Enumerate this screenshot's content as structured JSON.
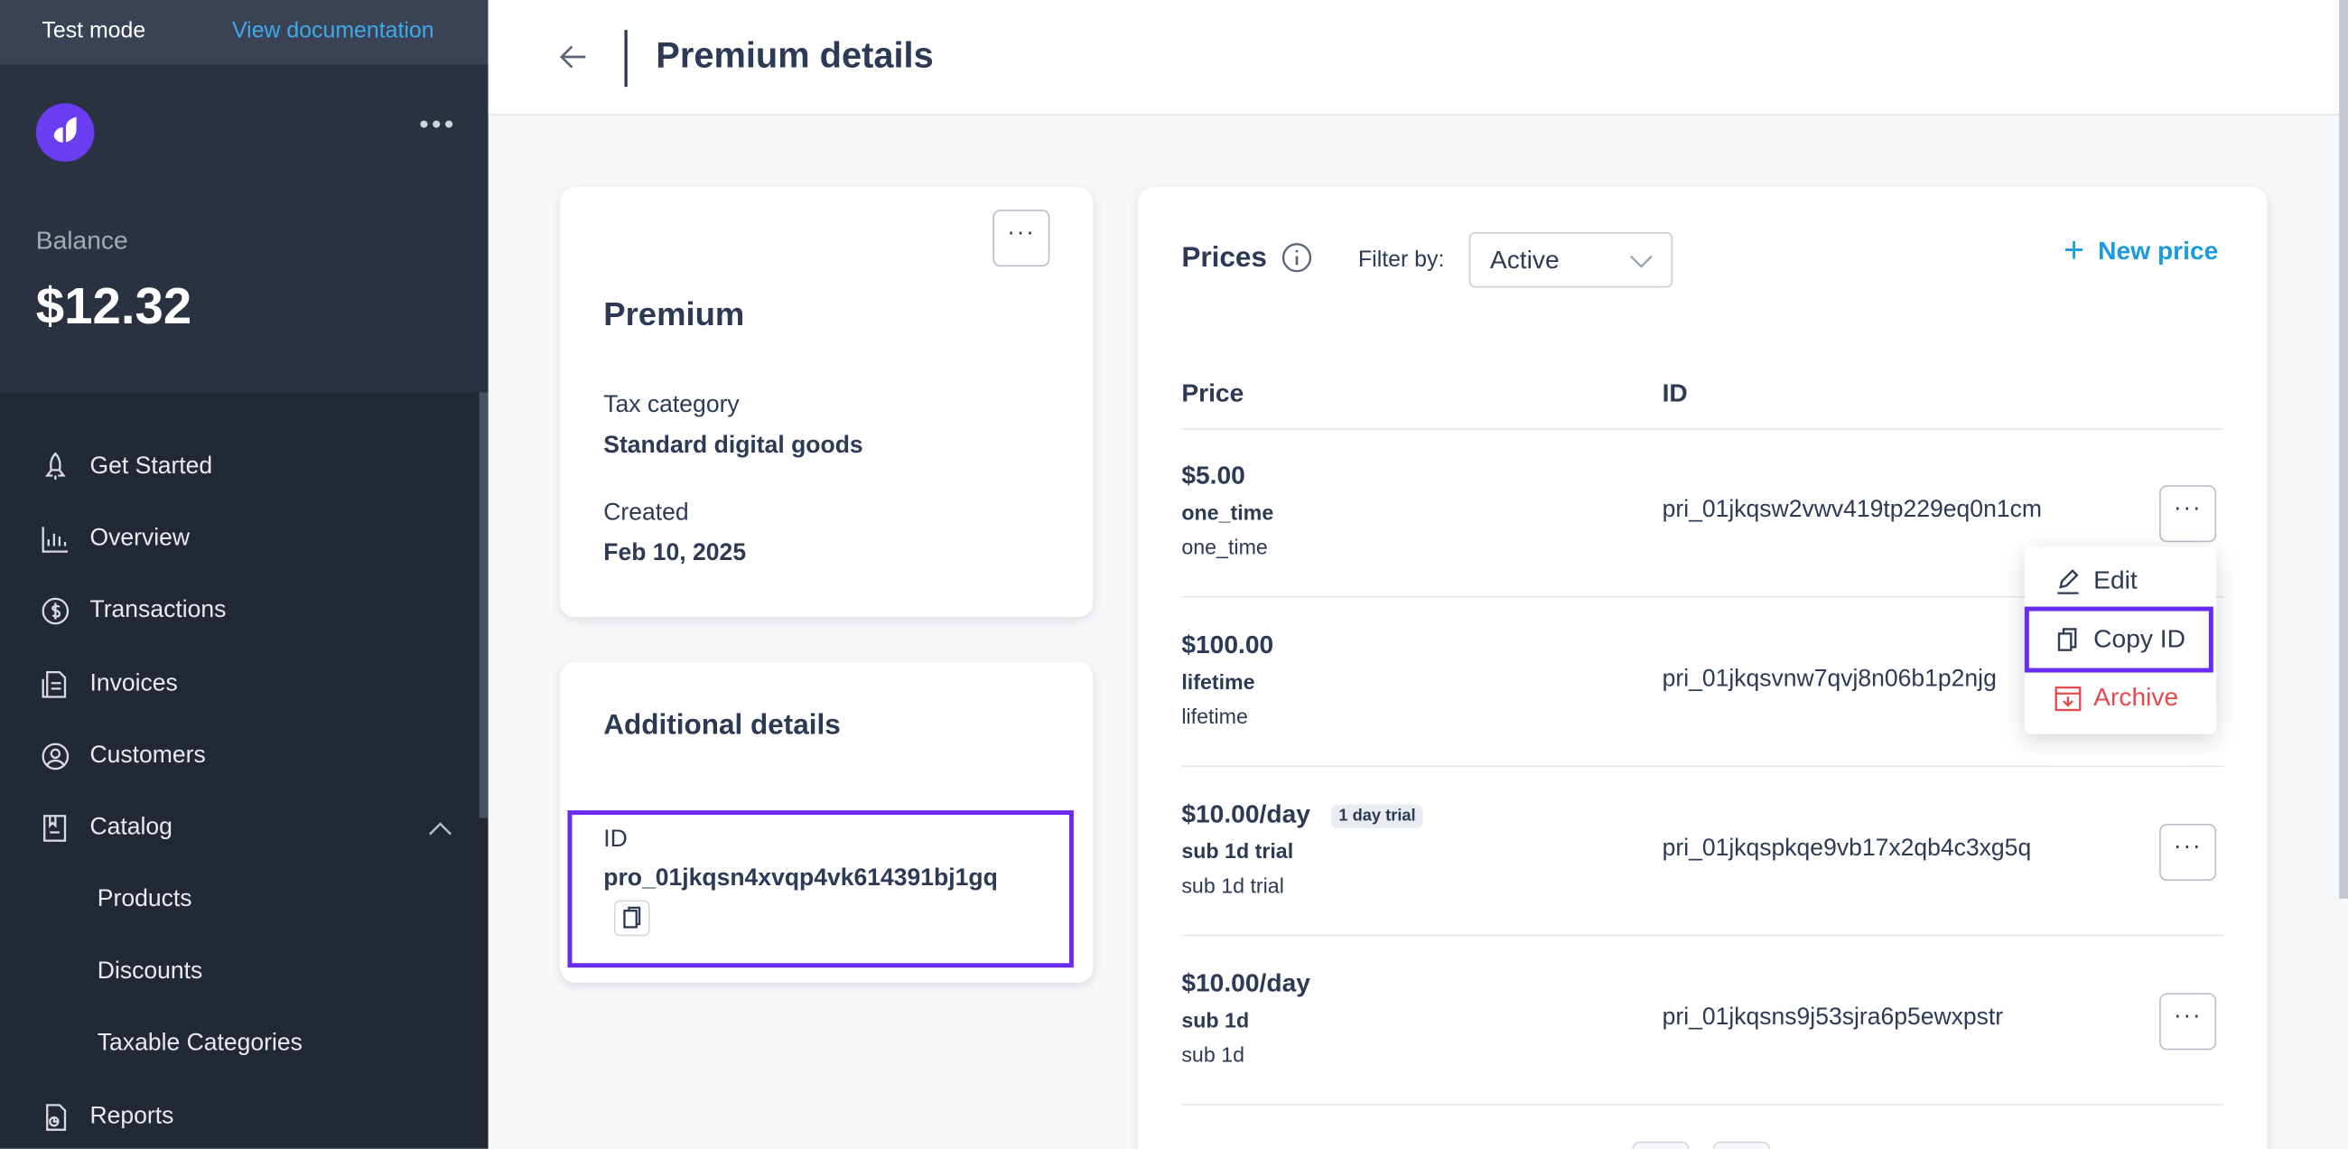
{
  "sidebar": {
    "test_mode": "Test mode",
    "view_docs": "View documentation",
    "balance_label": "Balance",
    "balance_value": "$12.32",
    "items": [
      {
        "label": "Get Started",
        "icon": "rocket-icon"
      },
      {
        "label": "Overview",
        "icon": "bar-chart-icon"
      },
      {
        "label": "Transactions",
        "icon": "dollar-circle-icon"
      },
      {
        "label": "Invoices",
        "icon": "invoice-icon"
      },
      {
        "label": "Customers",
        "icon": "user-circle-icon"
      },
      {
        "label": "Catalog",
        "icon": "catalog-icon",
        "expanded": true
      },
      {
        "label": "Reports",
        "icon": "reports-icon"
      }
    ],
    "catalog_sub": [
      "Products",
      "Discounts",
      "Taxable Categories"
    ]
  },
  "header": {
    "title": "Premium details"
  },
  "product": {
    "name": "Premium",
    "tax_label": "Tax category",
    "tax_value": "Standard digital goods",
    "created_label": "Created",
    "created_value": "Feb 10, 2025"
  },
  "additional": {
    "title": "Additional details",
    "id_label": "ID",
    "id_value": "pro_01jkqsn4xvqp4vk614391bj1gq"
  },
  "prices": {
    "title": "Prices",
    "filter_label": "Filter by:",
    "filter_value": "Active",
    "new_price": "New price",
    "col_price": "Price",
    "col_id": "ID",
    "rows": [
      {
        "price": "$5.00",
        "name": "one_time",
        "desc": "one_time",
        "id": "pri_01jkqsw2vwv419tp229eq0n1cm",
        "badge": ""
      },
      {
        "price": "$100.00",
        "name": "lifetime",
        "desc": "lifetime",
        "id": "pri_01jkqsvnw7qvj8n06b1p2njg",
        "badge": ""
      },
      {
        "price": "$10.00/day",
        "name": "sub 1d trial",
        "desc": "sub 1d trial",
        "id": "pri_01jkqspkqe9vb17x2qb4c3xg5q",
        "badge": "1 day trial"
      },
      {
        "price": "$10.00/day",
        "name": "sub 1d",
        "desc": "sub 1d",
        "id": "pri_01jkqsns9j53sjra6p5ewxpstr",
        "badge": ""
      }
    ]
  },
  "menu": {
    "edit": "Edit",
    "copy_id": "Copy ID",
    "archive": "Archive"
  },
  "colors": {
    "accent": "#6a2bf0",
    "link": "#1a9be0",
    "danger": "#e5484d",
    "sidebar": "#222834"
  }
}
